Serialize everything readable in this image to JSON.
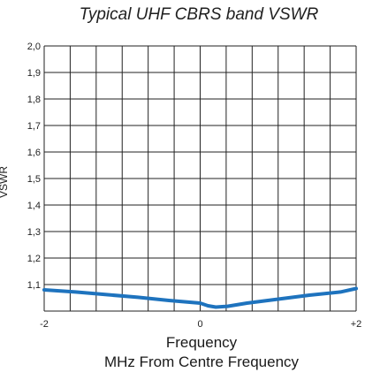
{
  "chart_data": {
    "type": "line",
    "title": "Typical UHF CBRS band VSWR",
    "xlabel": "Frequency",
    "xlabel2": "MHz From Centre Frequency",
    "ylabel": "VSWR",
    "xlim": [
      -2,
      2
    ],
    "ylim": [
      1.0,
      2.0
    ],
    "x_tick_labels": [
      "-2",
      "0",
      "+2"
    ],
    "x_tick_values": [
      -2,
      0,
      2
    ],
    "y_tick_labels": [
      "2,0",
      "1,9",
      "1,8",
      "1,7",
      "1,6",
      "1,5",
      "1,4",
      "1,3",
      "1,2",
      "1,1"
    ],
    "y_tick_values": [
      2.0,
      1.9,
      1.8,
      1.7,
      1.6,
      1.5,
      1.4,
      1.3,
      1.2,
      1.1
    ],
    "grid": true,
    "x_grid_step": 0.3333,
    "y_grid_step": 0.1,
    "line_color": "#1e73be",
    "series": [
      {
        "x": [
          -2.0,
          -1.6,
          -1.2,
          -0.8,
          -0.4,
          0.0,
          0.1,
          0.2,
          0.35,
          0.6,
          1.0,
          1.4,
          1.8,
          2.0
        ],
        "values": [
          1.08,
          1.072,
          1.062,
          1.052,
          1.04,
          1.03,
          1.02,
          1.015,
          1.018,
          1.03,
          1.045,
          1.06,
          1.072,
          1.085
        ]
      }
    ]
  }
}
